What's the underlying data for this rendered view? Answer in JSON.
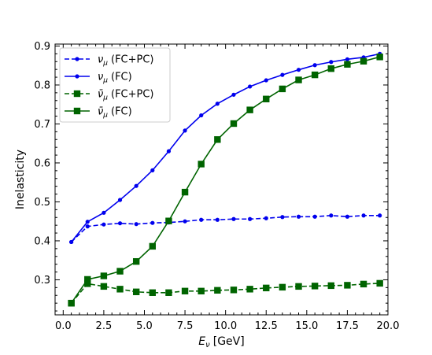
{
  "chart_data": {
    "type": "line",
    "title": "",
    "xlabel": "E_ν [GeV]",
    "xlabel_main": "E",
    "xlabel_sub": "ν",
    "xlabel_unit": "[GeV]",
    "ylabel": "Inelasticity",
    "xlim": [
      -0.5,
      20.0
    ],
    "ylim": [
      0.21,
      0.905
    ],
    "xticks": [
      0.0,
      2.5,
      5.0,
      7.5,
      10.0,
      12.5,
      15.0,
      17.5,
      20.0
    ],
    "xtick_labels": [
      "0.0",
      "2.5",
      "5.0",
      "7.5",
      "10.0",
      "12.5",
      "15.0",
      "17.5",
      "20.0"
    ],
    "yticks": [
      0.3,
      0.4,
      0.5,
      0.6,
      0.7,
      0.8,
      0.9
    ],
    "ytick_labels": [
      "0.3",
      "0.4",
      "0.5",
      "0.6",
      "0.7",
      "0.8",
      "0.9"
    ],
    "grid": false,
    "legend_position": "top-left",
    "x": [
      0.5,
      1.5,
      2.5,
      3.5,
      4.5,
      5.5,
      6.5,
      7.5,
      8.5,
      9.5,
      10.5,
      11.5,
      12.5,
      13.5,
      14.5,
      15.5,
      16.5,
      17.5,
      18.5,
      19.5
    ],
    "series": [
      {
        "name": "ν_μ (FC+PC)",
        "name_main": "ν",
        "name_sub": "μ",
        "name_suffix": "(FC+PC)",
        "color": "#0000ee",
        "linestyle": "dashed",
        "marker": "circle",
        "values": [
          0.397,
          0.437,
          0.442,
          0.445,
          0.443,
          0.446,
          0.447,
          0.45,
          0.454,
          0.454,
          0.456,
          0.456,
          0.458,
          0.461,
          0.462,
          0.462,
          0.465,
          0.462,
          0.465,
          0.465
        ]
      },
      {
        "name": "ν_μ (FC)",
        "name_main": "ν",
        "name_sub": "μ",
        "name_suffix": "(FC)",
        "color": "#0000ee",
        "linestyle": "solid",
        "marker": "circle",
        "values": [
          0.397,
          0.449,
          0.472,
          0.505,
          0.541,
          0.581,
          0.63,
          0.683,
          0.722,
          0.752,
          0.775,
          0.796,
          0.812,
          0.826,
          0.839,
          0.851,
          0.859,
          0.866,
          0.871,
          0.88
        ]
      },
      {
        "name": "ν̄_μ (FC+PC)",
        "name_main": "ν̄",
        "name_sub": "μ",
        "name_suffix": "(FC+PC)",
        "color": "#006400",
        "linestyle": "dashed",
        "marker": "square",
        "values": [
          0.24,
          0.29,
          0.283,
          0.276,
          0.269,
          0.267,
          0.267,
          0.271,
          0.271,
          0.273,
          0.274,
          0.276,
          0.279,
          0.281,
          0.283,
          0.284,
          0.285,
          0.286,
          0.289,
          0.291
        ]
      },
      {
        "name": "ν̄_μ (FC)",
        "name_main": "ν̄",
        "name_sub": "μ",
        "name_suffix": "(FC)",
        "color": "#006400",
        "linestyle": "solid",
        "marker": "square",
        "values": [
          0.24,
          0.301,
          0.31,
          0.322,
          0.347,
          0.386,
          0.451,
          0.525,
          0.597,
          0.66,
          0.701,
          0.736,
          0.764,
          0.79,
          0.813,
          0.826,
          0.842,
          0.853,
          0.861,
          0.872
        ]
      }
    ]
  }
}
